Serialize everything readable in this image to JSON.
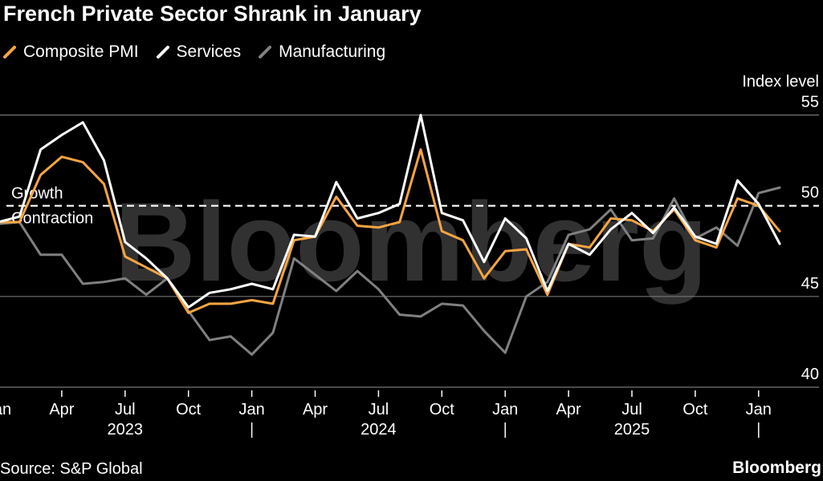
{
  "title": "French Private Sector Shrank in January",
  "source": "Source: S&P Global",
  "brand": "Bloomberg",
  "watermark": "Bloomberg",
  "chart_data": {
    "type": "line",
    "ylabel": "Index level",
    "ylim": [
      40,
      55
    ],
    "yticks": [
      55,
      50,
      45,
      40
    ],
    "grid": true,
    "reference_line": {
      "value": 50,
      "label_above": "Growth",
      "label_below": "Contraction"
    },
    "x_tick_labels": [
      {
        "label": "Jan",
        "index": 0
      },
      {
        "label": "Apr",
        "index": 3
      },
      {
        "label": "Jul",
        "index": 6
      },
      {
        "label": "Oct",
        "index": 9
      },
      {
        "label": "Jan",
        "index": 12
      },
      {
        "label": "Apr",
        "index": 15
      },
      {
        "label": "Jul",
        "index": 18
      },
      {
        "label": "Oct",
        "index": 21
      },
      {
        "label": "Jan",
        "index": 24
      },
      {
        "label": "Apr",
        "index": 27
      },
      {
        "label": "Jul",
        "index": 30
      },
      {
        "label": "Oct",
        "index": 33
      },
      {
        "label": "Jan",
        "index": 36
      }
    ],
    "year_labels": [
      {
        "label": "2023",
        "index": 6
      },
      {
        "label": "2024",
        "index": 18
      },
      {
        "label": "2025",
        "index": 30
      }
    ],
    "year_separators": [
      0,
      12,
      24,
      36
    ],
    "x": [
      "Dec 2022",
      "Jan 2023",
      "Feb 2023",
      "Mar 2023",
      "Apr 2023",
      "May 2023",
      "Jun 2023",
      "Jul 2023",
      "Aug 2023",
      "Sep 2023",
      "Oct 2023",
      "Nov 2023",
      "Dec 2023",
      "Jan 2024",
      "Feb 2024",
      "Mar 2024",
      "Apr 2024",
      "May 2024",
      "Jun 2024",
      "Jul 2024",
      "Aug 2024",
      "Sep 2024",
      "Oct 2024",
      "Nov 2024",
      "Dec 2024",
      "Jan 2025",
      "Feb 2025",
      "Mar 2025",
      "Apr 2025",
      "May 2025",
      "Jun 2025",
      "Jul 2025",
      "Aug 2025",
      "Sep 2025",
      "Oct 2025",
      "Nov 2025",
      "Dec 2025",
      "Jan 2026"
    ],
    "series": [
      {
        "name": "Composite PMI",
        "color": "#f7a541",
        "values": [
          49.1,
          49.1,
          51.7,
          52.7,
          52.4,
          51.2,
          47.2,
          46.6,
          46.0,
          44.1,
          44.6,
          44.6,
          44.8,
          44.6,
          48.1,
          48.3,
          50.5,
          48.9,
          48.8,
          49.1,
          53.1,
          48.6,
          48.1,
          46.0,
          47.5,
          47.6,
          45.1,
          47.9,
          47.7,
          49.3,
          49.2,
          48.6,
          49.8,
          48.1,
          47.7,
          50.4,
          50.0,
          48.6
        ]
      },
      {
        "name": "Services",
        "color": "#ffffff",
        "values": [
          49.1,
          49.4,
          53.1,
          53.9,
          54.6,
          52.5,
          48.0,
          47.1,
          46.0,
          44.4,
          45.2,
          45.4,
          45.7,
          45.4,
          48.4,
          48.3,
          51.3,
          49.3,
          49.6,
          50.1,
          55.0,
          49.6,
          49.2,
          46.9,
          49.3,
          48.2,
          45.3,
          47.9,
          47.3,
          48.7,
          49.6,
          48.5,
          49.9,
          48.3,
          47.9,
          51.4,
          50.1,
          47.9
        ]
      },
      {
        "name": "Manufacturing",
        "color": "#808080",
        "values": [
          49.0,
          49.1,
          47.3,
          47.3,
          45.7,
          45.8,
          46.0,
          45.1,
          46.0,
          44.2,
          42.6,
          42.8,
          41.8,
          43.0,
          47.1,
          46.2,
          45.3,
          46.4,
          45.4,
          44.0,
          43.9,
          44.6,
          44.5,
          43.1,
          41.9,
          45.0,
          45.8,
          48.4,
          48.7,
          49.8,
          48.1,
          48.2,
          50.4,
          48.2,
          48.8,
          47.8,
          50.7,
          51.0
        ]
      }
    ]
  }
}
